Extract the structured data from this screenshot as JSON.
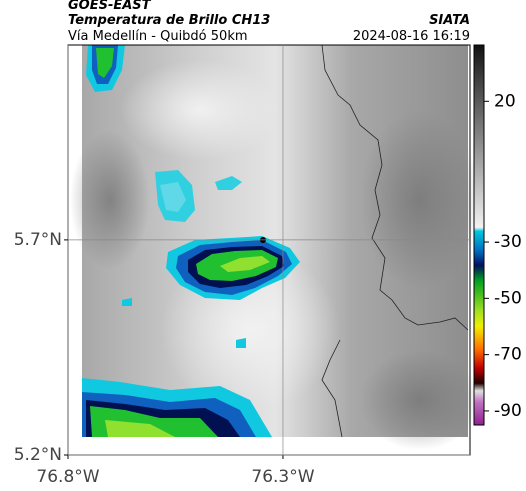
{
  "header": {
    "satellite": "GOES-EAST",
    "product": "Temperatura de Brillo CH13",
    "source": "SIATA",
    "route": "Vía Medellín - Quibdó 50km",
    "timestamp": "2024-08-16 16:19"
  },
  "map": {
    "xlim": [
      -76.8,
      -75.865
    ],
    "ylim": [
      5.2,
      6.153
    ],
    "xticks": [
      {
        "value": -76.8,
        "label": "76.8°W"
      },
      {
        "value": -76.3,
        "label": "76.3°W"
      }
    ],
    "yticks": [
      {
        "value": 5.2,
        "label": "5.2°N"
      },
      {
        "value": 5.7,
        "label": "5.7°N"
      }
    ],
    "grid": true
  },
  "colorbar": {
    "lim": [
      40,
      -95
    ],
    "ticks": [
      20,
      -30,
      -50,
      -70,
      -90
    ]
  }
}
